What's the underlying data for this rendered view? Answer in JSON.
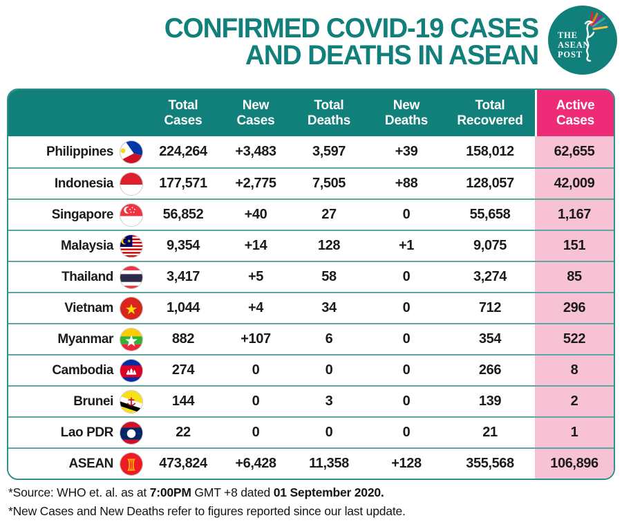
{
  "header": {
    "title_line1": "CONFIRMED COVID-19 CASES",
    "title_line2": "AND DEATHS IN ASEAN",
    "logo": {
      "line1": "THE",
      "line2": "ASEAN",
      "line3": "POST"
    }
  },
  "chart_data": {
    "type": "table",
    "title": "CONFIRMED COVID-19 CASES AND DEATHS IN ASEAN",
    "columns": [
      "Total\nCases",
      "New\nCases",
      "Total\nDeaths",
      "New\nDeaths",
      "Total\nRecovered",
      "Active\nCases"
    ],
    "rows": [
      {
        "country": "Philippines",
        "flag": "philippines",
        "total_cases": "224,264",
        "new_cases": "+3,483",
        "total_deaths": "3,597",
        "new_deaths": "+39",
        "total_recovered": "158,012",
        "active_cases": "62,655"
      },
      {
        "country": "Indonesia",
        "flag": "indonesia",
        "total_cases": "177,571",
        "new_cases": "+2,775",
        "total_deaths": "7,505",
        "new_deaths": "+88",
        "total_recovered": "128,057",
        "active_cases": "42,009"
      },
      {
        "country": "Singapore",
        "flag": "singapore",
        "total_cases": "56,852",
        "new_cases": "+40",
        "total_deaths": "27",
        "new_deaths": "0",
        "total_recovered": "55,658",
        "active_cases": "1,167"
      },
      {
        "country": "Malaysia",
        "flag": "malaysia",
        "total_cases": "9,354",
        "new_cases": "+14",
        "total_deaths": "128",
        "new_deaths": "+1",
        "total_recovered": "9,075",
        "active_cases": "151"
      },
      {
        "country": "Thailand",
        "flag": "thailand",
        "total_cases": "3,417",
        "new_cases": "+5",
        "total_deaths": "58",
        "new_deaths": "0",
        "total_recovered": "3,274",
        "active_cases": "85"
      },
      {
        "country": "Vietnam",
        "flag": "vietnam",
        "total_cases": "1,044",
        "new_cases": "+4",
        "total_deaths": "34",
        "new_deaths": "0",
        "total_recovered": "712",
        "active_cases": "296"
      },
      {
        "country": "Myanmar",
        "flag": "myanmar",
        "total_cases": "882",
        "new_cases": "+107",
        "total_deaths": "6",
        "new_deaths": "0",
        "total_recovered": "354",
        "active_cases": "522"
      },
      {
        "country": "Cambodia",
        "flag": "cambodia",
        "total_cases": "274",
        "new_cases": "0",
        "total_deaths": "0",
        "new_deaths": "0",
        "total_recovered": "266",
        "active_cases": "8"
      },
      {
        "country": "Brunei",
        "flag": "brunei",
        "total_cases": "144",
        "new_cases": "0",
        "total_deaths": "3",
        "new_deaths": "0",
        "total_recovered": "139",
        "active_cases": "2"
      },
      {
        "country": "Lao PDR",
        "flag": "laos",
        "total_cases": "22",
        "new_cases": "0",
        "total_deaths": "0",
        "new_deaths": "0",
        "total_recovered": "21",
        "active_cases": "1"
      },
      {
        "country": "ASEAN",
        "flag": "asean",
        "total_cases": "473,824",
        "new_cases": "+6,428",
        "total_deaths": "11,358",
        "new_deaths": "+128",
        "total_recovered": "355,568",
        "active_cases": "106,896"
      }
    ]
  },
  "footnotes": {
    "source_prefix": "*Source: WHO et. al. as at ",
    "source_time": "7:00PM",
    "source_middle": " GMT +8 dated ",
    "source_date": "01 September 2020.",
    "update_note": "*New Cases and New Deaths refer to figures reported since our last update."
  },
  "colors": {
    "teal": "#12807A",
    "magenta": "#ED2B76",
    "pink": "#F8C2D5"
  }
}
